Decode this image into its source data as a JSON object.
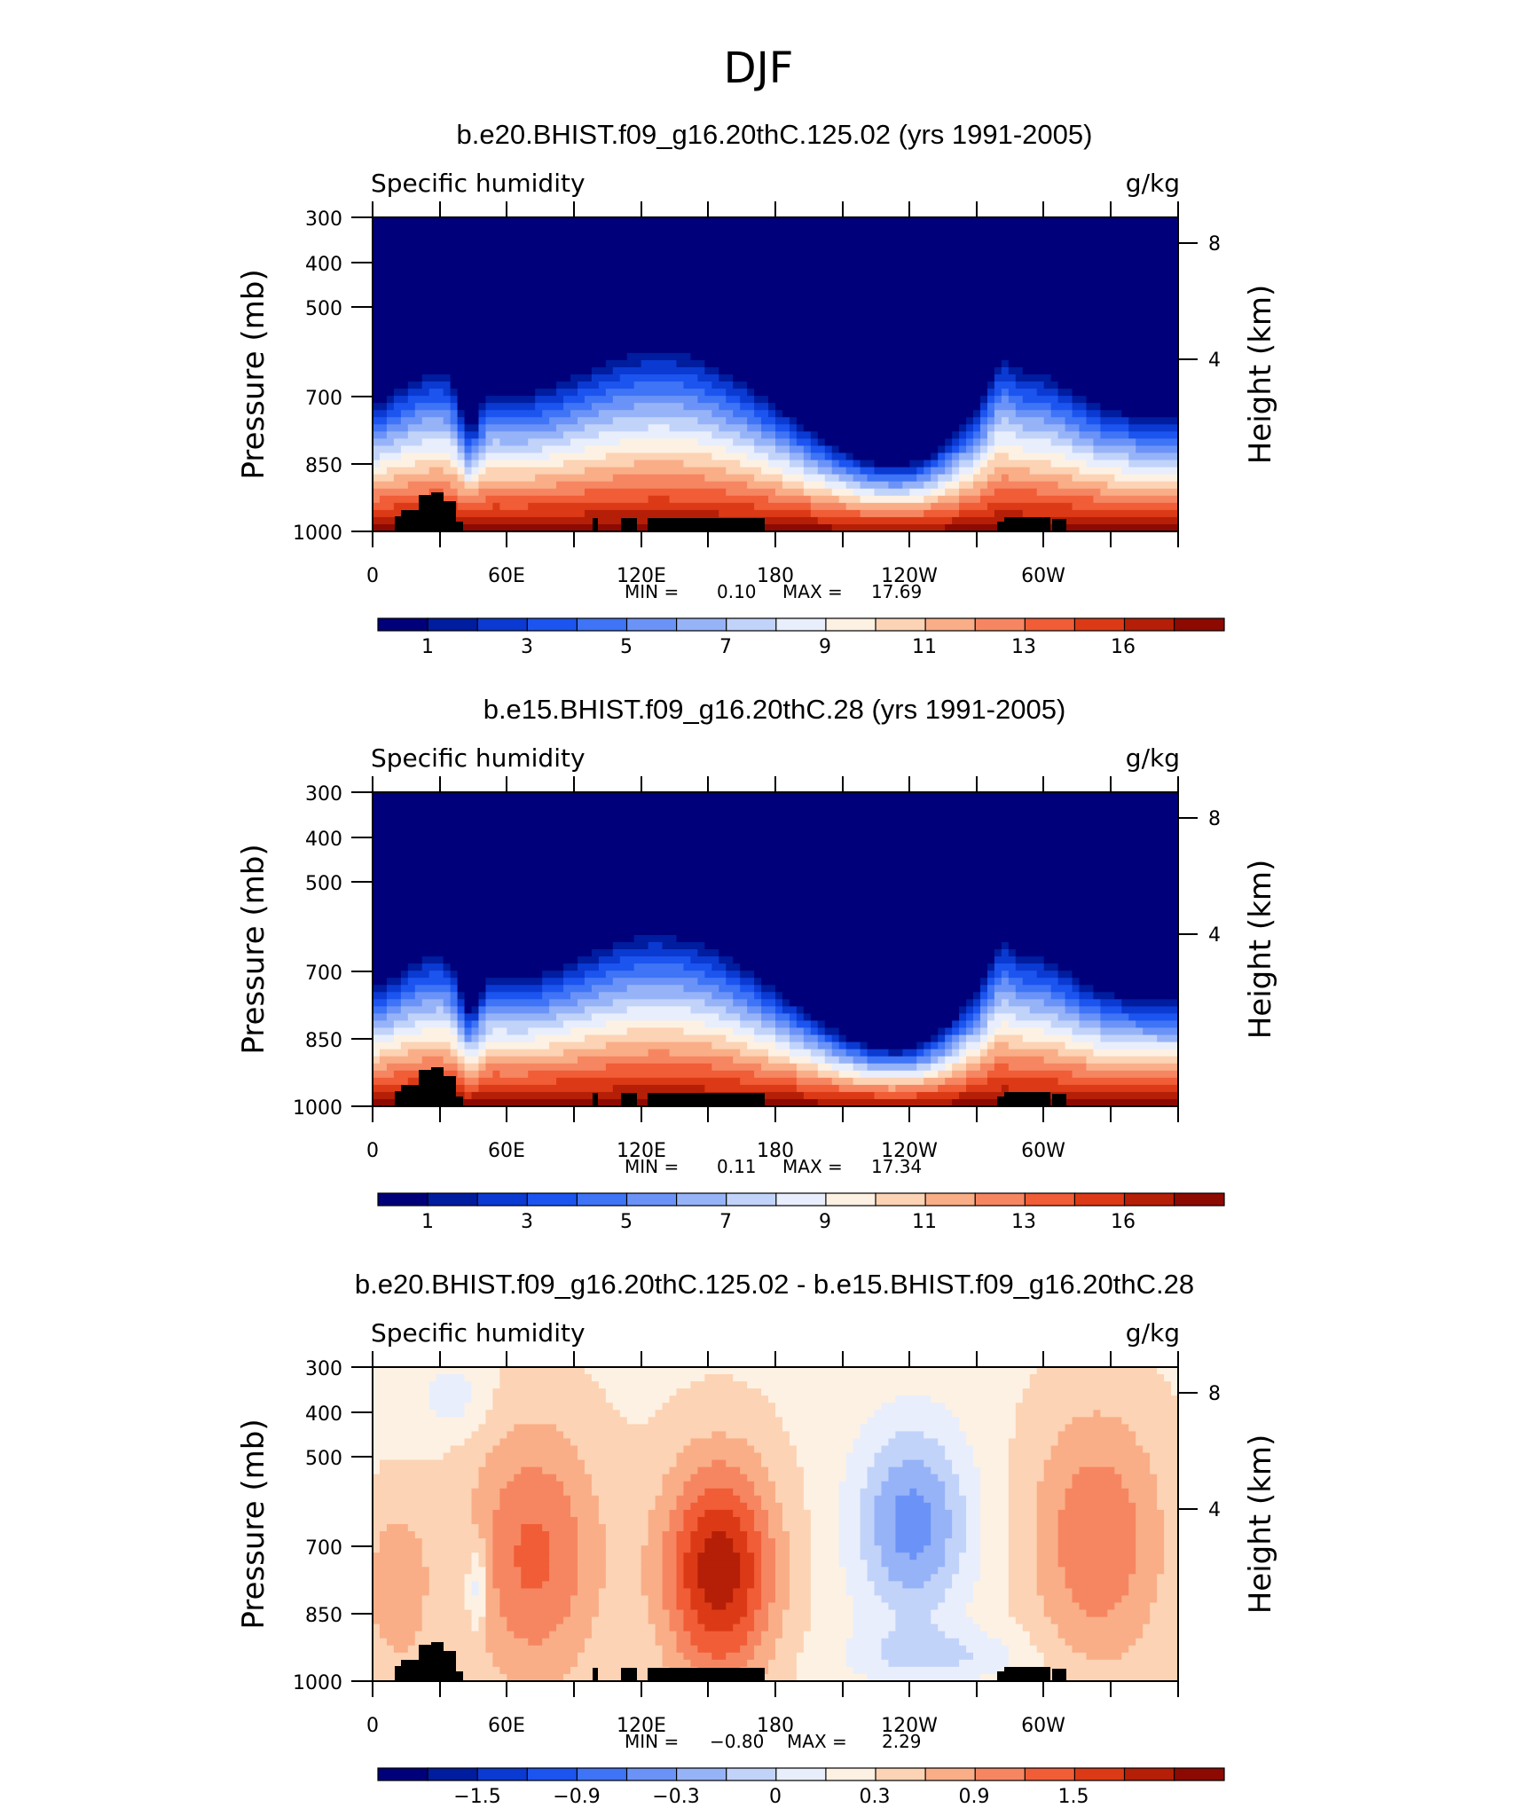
{
  "figure": {
    "title": "DJF"
  },
  "chart_data": [
    {
      "type": "heatmap",
      "title": "b.e20.BHIST.f09_g16.20thC.125.02 (yrs 1991-2005)",
      "left_label": "Specific humidity",
      "right_label": "g/kg",
      "ylabel": "Pressure (mb)",
      "ylabel_right": "Height (km)",
      "x_ticks": [
        "0",
        "60E",
        "120E",
        "180",
        "120W",
        "60W"
      ],
      "y_ticks": [
        "300",
        "400",
        "500",
        "700",
        "850",
        "1000"
      ],
      "y_right_ticks": [
        "8",
        "4"
      ],
      "stats": {
        "min_label": "MIN =",
        "min": "0.10",
        "max_label": "MAX =",
        "max": "17.69"
      },
      "colorbar_labels": [
        "1",
        "3",
        "5",
        "7",
        "9",
        "11",
        "13",
        "16"
      ],
      "field": "absolute"
    },
    {
      "type": "heatmap",
      "title": "b.e15.BHIST.f09_g16.20thC.28 (yrs 1991-2005)",
      "left_label": "Specific humidity",
      "right_label": "g/kg",
      "ylabel": "Pressure (mb)",
      "ylabel_right": "Height (km)",
      "x_ticks": [
        "0",
        "60E",
        "120E",
        "180",
        "120W",
        "60W"
      ],
      "y_ticks": [
        "300",
        "400",
        "500",
        "700",
        "850",
        "1000"
      ],
      "y_right_ticks": [
        "8",
        "4"
      ],
      "stats": {
        "min_label": "MIN =",
        "min": "0.11",
        "max_label": "MAX =",
        "max": "17.34"
      },
      "colorbar_labels": [
        "1",
        "3",
        "5",
        "7",
        "9",
        "11",
        "13",
        "16"
      ],
      "field": "absolute"
    },
    {
      "type": "heatmap",
      "title": "b.e20.BHIST.f09_g16.20thC.125.02 - b.e15.BHIST.f09_g16.20thC.28",
      "left_label": "Specific humidity",
      "right_label": "g/kg",
      "ylabel": "Pressure (mb)",
      "ylabel_right": "Height (km)",
      "x_ticks": [
        "0",
        "60E",
        "120E",
        "180",
        "120W",
        "60W"
      ],
      "y_ticks": [
        "300",
        "400",
        "500",
        "700",
        "850",
        "1000"
      ],
      "y_right_ticks": [
        "8",
        "4"
      ],
      "stats": {
        "min_label": "MIN =",
        "min": "−0.80",
        "max_label": "MAX =",
        "max": "2.29"
      },
      "colorbar_labels": [
        "−1.5",
        "−0.9",
        "−0.3",
        "0",
        "0.3",
        "0.9",
        "1.5"
      ],
      "field": "difference"
    }
  ],
  "colormap": [
    "#00007a",
    "#001c9f",
    "#0a3ad1",
    "#1c54f0",
    "#3e74f5",
    "#6b93f7",
    "#97b3f8",
    "#c2d3fa",
    "#e8eefc",
    "#fdf1e3",
    "#fcd3b4",
    "#f9ae87",
    "#f68661",
    "#f05d36",
    "#dc3a16",
    "#b51f07",
    "#8c0a02"
  ]
}
